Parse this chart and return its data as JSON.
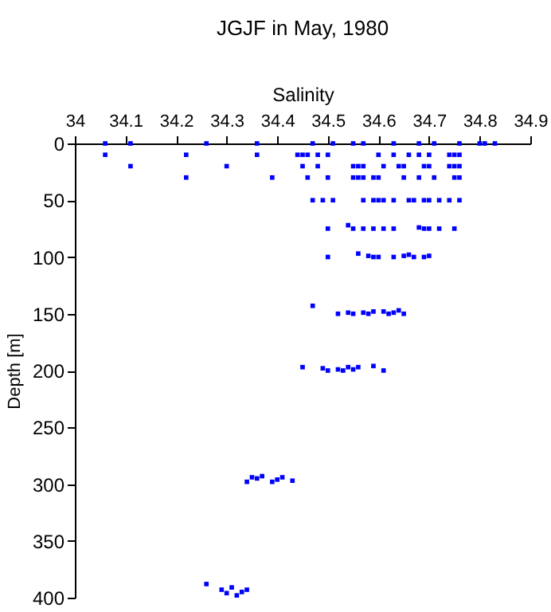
{
  "chart_data": {
    "type": "scatter",
    "title": "JGJF in May, 1980",
    "xlabel": "Salinity",
    "ylabel": "Depth [m]",
    "xlim": [
      34,
      34.9
    ],
    "xticks": [
      34,
      34.1,
      34.2,
      34.3,
      34.4,
      34.5,
      34.6,
      34.7,
      34.8,
      34.9
    ],
    "ylim": [
      400,
      0
    ],
    "yticks": [
      0,
      50,
      100,
      150,
      200,
      250,
      300,
      350,
      400
    ],
    "grid": false,
    "marker": "square",
    "series": [
      {
        "color": "#0000ff",
        "x": [
          34.06,
          34.11,
          34.26,
          34.36,
          34.47,
          34.51,
          34.55,
          34.57,
          34.63,
          34.68,
          34.71,
          34.76,
          34.8,
          34.81,
          34.83,
          34.06,
          34.22,
          34.36,
          34.44,
          34.45,
          34.46,
          34.48,
          34.5,
          34.6,
          34.63,
          34.66,
          34.68,
          34.7,
          34.74,
          34.75,
          34.76,
          34.11,
          34.3,
          34.45,
          34.48,
          34.55,
          34.56,
          34.57,
          34.61,
          34.64,
          34.65,
          34.69,
          34.7,
          34.74,
          34.75,
          34.76,
          34.22,
          34.39,
          34.46,
          34.5,
          34.55,
          34.56,
          34.57,
          34.59,
          34.6,
          34.65,
          34.68,
          34.71,
          34.75,
          34.76,
          34.47,
          34.49,
          34.51,
          34.57,
          34.59,
          34.6,
          34.61,
          34.63,
          34.66,
          34.67,
          34.69,
          34.7,
          34.72,
          34.74,
          34.76,
          34.5,
          34.54,
          34.55,
          34.57,
          34.59,
          34.61,
          34.63,
          34.68,
          34.69,
          34.7,
          34.72,
          34.75,
          34.5,
          34.56,
          34.58,
          34.59,
          34.6,
          34.63,
          34.65,
          34.66,
          34.67,
          34.69,
          34.7,
          34.47,
          34.52,
          34.54,
          34.55,
          34.57,
          34.58,
          34.59,
          34.61,
          34.62,
          34.63,
          34.64,
          34.65,
          34.45,
          34.49,
          34.5,
          34.52,
          34.53,
          34.54,
          34.55,
          34.56,
          34.59,
          34.61,
          34.34,
          34.35,
          34.36,
          34.37,
          34.39,
          34.4,
          34.41,
          34.43,
          34.26,
          34.29,
          34.3,
          34.31,
          34.32,
          34.33,
          34.34
        ],
        "values": [
          0,
          0,
          0,
          0,
          0,
          0,
          0,
          0,
          0,
          0,
          0,
          0,
          0,
          0,
          0,
          10,
          10,
          10,
          10,
          10,
          10,
          10,
          10,
          10,
          10,
          10,
          10,
          10,
          10,
          10,
          10,
          20,
          20,
          20,
          20,
          20,
          20,
          20,
          20,
          20,
          20,
          20,
          20,
          20,
          20,
          20,
          30,
          30,
          30,
          30,
          30,
          30,
          30,
          30,
          30,
          30,
          30,
          30,
          30,
          30,
          50,
          50,
          50,
          50,
          50,
          50,
          50,
          50,
          50,
          50,
          50,
          50,
          50,
          50,
          50,
          75,
          72,
          75,
          75,
          75,
          75,
          75,
          74,
          75,
          75,
          75,
          75,
          100,
          97,
          99,
          100,
          100,
          100,
          99,
          98,
          100,
          100,
          99,
          143,
          150,
          149,
          150,
          149,
          150,
          148,
          148,
          150,
          149,
          147,
          150,
          197,
          198,
          200,
          199,
          200,
          197,
          199,
          197,
          196,
          200,
          298,
          294,
          295,
          293,
          298,
          296,
          294,
          297,
          388,
          393,
          396,
          391,
          398,
          395,
          393
        ]
      }
    ]
  }
}
